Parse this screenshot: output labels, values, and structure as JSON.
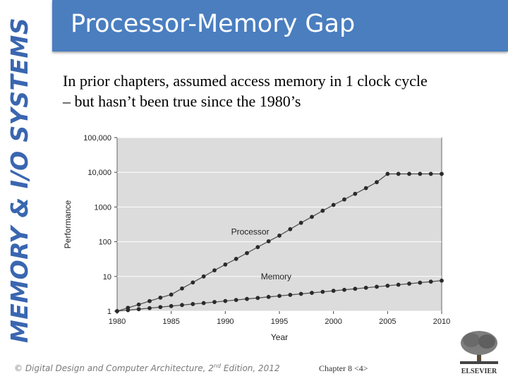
{
  "side_title": "MEMORY & I/O SYSTEMS",
  "header": {
    "title": "Processor-Memory Gap"
  },
  "body": {
    "line1": "In prior chapters, assumed access memory in 1 clock cycle",
    "line2": "– but hasn’t been true since the 1980’s"
  },
  "footer": {
    "copyright_prefix": "© Digital Design and Computer Architecture, 2",
    "copyright_sup": "nd",
    "copyright_suffix": " Edition, 2012",
    "chapter": "Chapter 8 <4>",
    "publisher": "ELSEVIER"
  },
  "colors": {
    "accent": "#4a7ebf",
    "side_title": "#3a66b0",
    "plot_bg": "#dcdcdc"
  },
  "chart_data": {
    "type": "line",
    "xlabel": "Year",
    "ylabel": "Performance",
    "y_scale": "log",
    "xlim": [
      1980,
      2010
    ],
    "ylim": [
      1,
      100000
    ],
    "x_ticks": [
      1980,
      1985,
      1990,
      1995,
      2000,
      2005,
      2010
    ],
    "y_ticks": [
      1,
      10,
      100,
      1000,
      10000,
      100000
    ],
    "x_tick_labels": [
      "1980",
      "1985",
      "1990",
      "1995",
      "2000",
      "2005",
      "2010"
    ],
    "y_tick_labels": [
      "1",
      "10",
      "100",
      "1000",
      "10,000",
      "100,000"
    ],
    "series": [
      {
        "name": "Processor",
        "x": [
          1980,
          1981,
          1982,
          1983,
          1984,
          1985,
          1986,
          1987,
          1988,
          1989,
          1990,
          1991,
          1992,
          1993,
          1994,
          1995,
          1996,
          1997,
          1998,
          1999,
          2000,
          2001,
          2002,
          2003,
          2004,
          2005,
          2006,
          2007,
          2008,
          2009,
          2010
        ],
        "y": [
          1,
          1.25,
          1.55,
          1.95,
          2.45,
          3.0,
          4.5,
          6.7,
          10,
          15,
          22,
          32,
          47,
          70,
          103,
          150,
          230,
          350,
          520,
          780,
          1150,
          1650,
          2400,
          3500,
          5200,
          9000,
          9000,
          9000,
          9000,
          9000,
          9000
        ]
      },
      {
        "name": "Memory",
        "x": [
          1980,
          1981,
          1982,
          1983,
          1984,
          1985,
          1986,
          1987,
          1988,
          1989,
          1990,
          1991,
          1992,
          1993,
          1994,
          1995,
          1996,
          1997,
          1998,
          1999,
          2000,
          2001,
          2002,
          2003,
          2004,
          2005,
          2006,
          2007,
          2008,
          2009,
          2010
        ],
        "y": [
          1,
          1.07,
          1.14,
          1.22,
          1.31,
          1.4,
          1.5,
          1.6,
          1.71,
          1.83,
          1.96,
          2.1,
          2.25,
          2.4,
          2.57,
          2.75,
          2.94,
          3.15,
          3.37,
          3.6,
          3.85,
          4.12,
          4.41,
          4.72,
          5.05,
          5.4,
          5.78,
          6.18,
          6.61,
          7.07,
          7.57
        ]
      }
    ]
  }
}
